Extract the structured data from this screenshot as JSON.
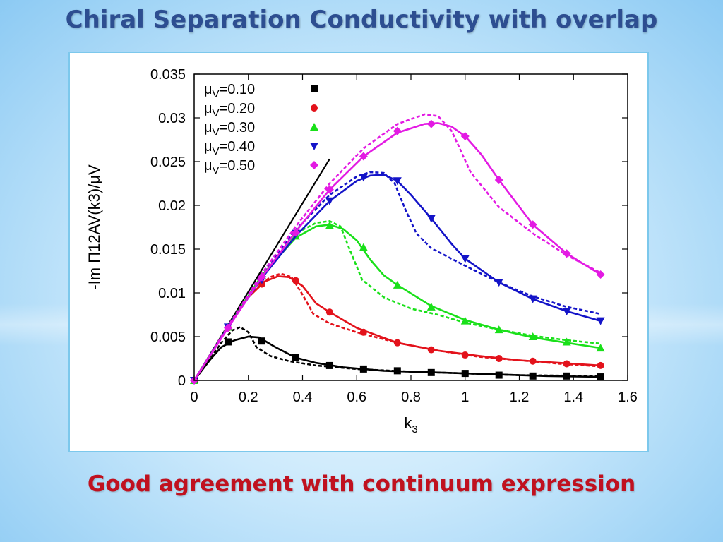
{
  "slide": {
    "title": "Chiral Separation Conductivity with overlap",
    "caption": "Good agreement with continuum expression"
  },
  "chart_data": {
    "type": "line",
    "xlabel": "k",
    "xlabel_sub": "3",
    "ylabel": "-Im Π12AV(k3)/μV",
    "xlim": [
      0,
      1.6
    ],
    "ylim": [
      0,
      0.035
    ],
    "xticks": [
      "0",
      "0.2",
      "0.4",
      "0.6",
      "0.8",
      "1",
      "1.2",
      "1.4",
      "1.6"
    ],
    "yticks": [
      "0",
      "0.005",
      "0.01",
      "0.015",
      "0.02",
      "0.025",
      "0.03",
      "0.035"
    ],
    "legend_position": "top-left",
    "reference_line": {
      "points": [
        [
          0,
          0
        ],
        [
          0.5,
          0.0253
        ]
      ],
      "color": "#000000"
    },
    "series": [
      {
        "name": "μV=0.10",
        "legend_prefix": "μ",
        "legend_sub": "V",
        "legend_value": "=0.10",
        "color": "#000000",
        "marker": "square",
        "points": [
          [
            0,
            0
          ],
          [
            0.125,
            0.0044
          ],
          [
            0.25,
            0.0045
          ],
          [
            0.375,
            0.0026
          ],
          [
            0.5,
            0.0017
          ],
          [
            0.625,
            0.0013
          ],
          [
            0.75,
            0.0011
          ],
          [
            0.875,
            0.0009
          ],
          [
            1.0,
            0.0008
          ],
          [
            1.125,
            0.0006
          ],
          [
            1.25,
            0.0005
          ],
          [
            1.375,
            0.0005
          ],
          [
            1.5,
            0.0004
          ]
        ],
        "solid": [
          [
            0,
            0
          ],
          [
            0.06,
            0.0024
          ],
          [
            0.1,
            0.0038
          ],
          [
            0.15,
            0.0046
          ],
          [
            0.2,
            0.005
          ],
          [
            0.24,
            0.0049
          ],
          [
            0.3,
            0.0038
          ],
          [
            0.375,
            0.0026
          ],
          [
            0.45,
            0.002
          ],
          [
            0.55,
            0.0015
          ],
          [
            0.7,
            0.0011
          ],
          [
            0.9,
            0.0009
          ],
          [
            1.1,
            0.0007
          ],
          [
            1.3,
            0.0005
          ],
          [
            1.5,
            0.0004
          ]
        ],
        "dashed": [
          [
            0,
            0
          ],
          [
            0.06,
            0.0025
          ],
          [
            0.1,
            0.0043
          ],
          [
            0.14,
            0.0057
          ],
          [
            0.17,
            0.0061
          ],
          [
            0.2,
            0.0055
          ],
          [
            0.23,
            0.0038
          ],
          [
            0.28,
            0.0028
          ],
          [
            0.35,
            0.0022
          ],
          [
            0.45,
            0.0017
          ],
          [
            0.6,
            0.0013
          ],
          [
            0.8,
            0.001
          ],
          [
            1.0,
            0.0008
          ],
          [
            1.2,
            0.0006
          ],
          [
            1.5,
            0.0005
          ]
        ]
      },
      {
        "name": "μV=0.20",
        "legend_prefix": "μ",
        "legend_sub": "V",
        "legend_value": "=0.20",
        "color": "#e3121b",
        "marker": "circle",
        "points": [
          [
            0,
            0
          ],
          [
            0.125,
            0.006
          ],
          [
            0.25,
            0.011
          ],
          [
            0.375,
            0.0114
          ],
          [
            0.5,
            0.0078
          ],
          [
            0.625,
            0.0055
          ],
          [
            0.75,
            0.0043
          ],
          [
            0.875,
            0.0035
          ],
          [
            1.0,
            0.0029
          ],
          [
            1.125,
            0.0025
          ],
          [
            1.25,
            0.0022
          ],
          [
            1.375,
            0.0019
          ],
          [
            1.5,
            0.0017
          ]
        ],
        "solid": [
          [
            0,
            0
          ],
          [
            0.125,
            0.0061
          ],
          [
            0.2,
            0.0095
          ],
          [
            0.26,
            0.0113
          ],
          [
            0.31,
            0.0119
          ],
          [
            0.35,
            0.0118
          ],
          [
            0.4,
            0.0108
          ],
          [
            0.45,
            0.0088
          ],
          [
            0.5,
            0.0078
          ],
          [
            0.6,
            0.006
          ],
          [
            0.75,
            0.0043
          ],
          [
            0.9,
            0.0034
          ],
          [
            1.05,
            0.0028
          ],
          [
            1.2,
            0.0023
          ],
          [
            1.35,
            0.002
          ],
          [
            1.5,
            0.0017
          ]
        ],
        "dashed": [
          [
            0,
            0
          ],
          [
            0.125,
            0.0062
          ],
          [
            0.2,
            0.0097
          ],
          [
            0.28,
            0.0118
          ],
          [
            0.32,
            0.0122
          ],
          [
            0.36,
            0.0118
          ],
          [
            0.4,
            0.0098
          ],
          [
            0.44,
            0.0076
          ],
          [
            0.5,
            0.0065
          ],
          [
            0.6,
            0.0055
          ],
          [
            0.75,
            0.0043
          ],
          [
            0.9,
            0.0034
          ],
          [
            1.05,
            0.0027
          ],
          [
            1.2,
            0.0023
          ],
          [
            1.35,
            0.0019
          ],
          [
            1.5,
            0.0016
          ]
        ]
      },
      {
        "name": "μV=0.30",
        "legend_prefix": "μ",
        "legend_sub": "V",
        "legend_value": "=0.30",
        "color": "#19e019",
        "marker": "triangle-up",
        "points": [
          [
            0,
            0
          ],
          [
            0.125,
            0.0061
          ],
          [
            0.25,
            0.012
          ],
          [
            0.375,
            0.0165
          ],
          [
            0.5,
            0.0177
          ],
          [
            0.625,
            0.0152
          ],
          [
            0.75,
            0.0109
          ],
          [
            0.875,
            0.0084
          ],
          [
            1.0,
            0.0068
          ],
          [
            1.125,
            0.0058
          ],
          [
            1.25,
            0.005
          ],
          [
            1.375,
            0.0044
          ],
          [
            1.5,
            0.0037
          ]
        ],
        "solid": [
          [
            0,
            0
          ],
          [
            0.125,
            0.0061
          ],
          [
            0.25,
            0.012
          ],
          [
            0.375,
            0.0163
          ],
          [
            0.45,
            0.0176
          ],
          [
            0.5,
            0.0178
          ],
          [
            0.55,
            0.0173
          ],
          [
            0.6,
            0.016
          ],
          [
            0.65,
            0.0138
          ],
          [
            0.7,
            0.012
          ],
          [
            0.75,
            0.0109
          ],
          [
            0.875,
            0.0085
          ],
          [
            1.0,
            0.0069
          ],
          [
            1.125,
            0.0058
          ],
          [
            1.25,
            0.0049
          ],
          [
            1.375,
            0.0043
          ],
          [
            1.5,
            0.0037
          ]
        ],
        "dashed": [
          [
            0,
            0
          ],
          [
            0.125,
            0.0062
          ],
          [
            0.25,
            0.0122
          ],
          [
            0.375,
            0.0168
          ],
          [
            0.45,
            0.018
          ],
          [
            0.5,
            0.0182
          ],
          [
            0.54,
            0.0176
          ],
          [
            0.58,
            0.0145
          ],
          [
            0.62,
            0.0115
          ],
          [
            0.7,
            0.0095
          ],
          [
            0.8,
            0.0082
          ],
          [
            0.9,
            0.0075
          ],
          [
            1.0,
            0.0066
          ],
          [
            1.125,
            0.0058
          ],
          [
            1.25,
            0.0051
          ],
          [
            1.375,
            0.0046
          ],
          [
            1.5,
            0.0042
          ]
        ]
      },
      {
        "name": "μV=0.40",
        "legend_prefix": "μ",
        "legend_sub": "V",
        "legend_value": "=0.40",
        "color": "#1414c8",
        "marker": "triangle-down",
        "points": [
          [
            0,
            0
          ],
          [
            0.125,
            0.0061
          ],
          [
            0.25,
            0.0115
          ],
          [
            0.375,
            0.0168
          ],
          [
            0.5,
            0.0205
          ],
          [
            0.625,
            0.0232
          ],
          [
            0.75,
            0.0228
          ],
          [
            0.875,
            0.0185
          ],
          [
            1.0,
            0.0139
          ],
          [
            1.125,
            0.0112
          ],
          [
            1.25,
            0.0093
          ],
          [
            1.375,
            0.0079
          ],
          [
            1.5,
            0.0068
          ]
        ],
        "solid": [
          [
            0,
            0
          ],
          [
            0.125,
            0.0061
          ],
          [
            0.25,
            0.0117
          ],
          [
            0.375,
            0.0165
          ],
          [
            0.5,
            0.0205
          ],
          [
            0.6,
            0.0228
          ],
          [
            0.65,
            0.0234
          ],
          [
            0.7,
            0.0235
          ],
          [
            0.75,
            0.0228
          ],
          [
            0.8,
            0.0212
          ],
          [
            0.875,
            0.0185
          ],
          [
            0.95,
            0.0156
          ],
          [
            1.0,
            0.0139
          ],
          [
            1.125,
            0.0112
          ],
          [
            1.25,
            0.0093
          ],
          [
            1.375,
            0.0079
          ],
          [
            1.5,
            0.0068
          ]
        ],
        "dashed": [
          [
            0,
            0
          ],
          [
            0.125,
            0.0062
          ],
          [
            0.25,
            0.0122
          ],
          [
            0.375,
            0.0172
          ],
          [
            0.5,
            0.0212
          ],
          [
            0.6,
            0.0233
          ],
          [
            0.65,
            0.0238
          ],
          [
            0.7,
            0.0237
          ],
          [
            0.74,
            0.0225
          ],
          [
            0.78,
            0.0195
          ],
          [
            0.82,
            0.0168
          ],
          [
            0.875,
            0.0151
          ],
          [
            1.0,
            0.0131
          ],
          [
            1.125,
            0.0112
          ],
          [
            1.25,
            0.0096
          ],
          [
            1.375,
            0.0084
          ],
          [
            1.5,
            0.0076
          ]
        ]
      },
      {
        "name": "μV=0.50",
        "legend_prefix": "μ",
        "legend_sub": "V",
        "legend_value": "=0.50",
        "color": "#e31ae3",
        "marker": "diamond",
        "points": [
          [
            0,
            0
          ],
          [
            0.125,
            0.006
          ],
          [
            0.25,
            0.0118
          ],
          [
            0.375,
            0.0169
          ],
          [
            0.5,
            0.0218
          ],
          [
            0.625,
            0.0256
          ],
          [
            0.75,
            0.0285
          ],
          [
            0.875,
            0.0293
          ],
          [
            1.0,
            0.0279
          ],
          [
            1.125,
            0.0229
          ],
          [
            1.25,
            0.0178
          ],
          [
            1.375,
            0.0145
          ],
          [
            1.5,
            0.0121
          ]
        ],
        "solid": [
          [
            0,
            0
          ],
          [
            0.125,
            0.006
          ],
          [
            0.25,
            0.0118
          ],
          [
            0.375,
            0.017
          ],
          [
            0.5,
            0.0218
          ],
          [
            0.625,
            0.0256
          ],
          [
            0.75,
            0.0283
          ],
          [
            0.85,
            0.0293
          ],
          [
            0.9,
            0.0294
          ],
          [
            0.95,
            0.029
          ],
          [
            1.0,
            0.0279
          ],
          [
            1.06,
            0.0258
          ],
          [
            1.125,
            0.0229
          ],
          [
            1.25,
            0.0178
          ],
          [
            1.375,
            0.0145
          ],
          [
            1.5,
            0.0121
          ]
        ],
        "dashed": [
          [
            0,
            0
          ],
          [
            0.125,
            0.0062
          ],
          [
            0.25,
            0.0122
          ],
          [
            0.375,
            0.0176
          ],
          [
            0.5,
            0.0225
          ],
          [
            0.625,
            0.0265
          ],
          [
            0.75,
            0.0293
          ],
          [
            0.85,
            0.0304
          ],
          [
            0.9,
            0.0302
          ],
          [
            0.95,
            0.0285
          ],
          [
            0.98,
            0.0265
          ],
          [
            1.02,
            0.0238
          ],
          [
            1.125,
            0.0198
          ],
          [
            1.25,
            0.0168
          ],
          [
            1.375,
            0.0143
          ],
          [
            1.5,
            0.0123
          ]
        ]
      }
    ]
  }
}
